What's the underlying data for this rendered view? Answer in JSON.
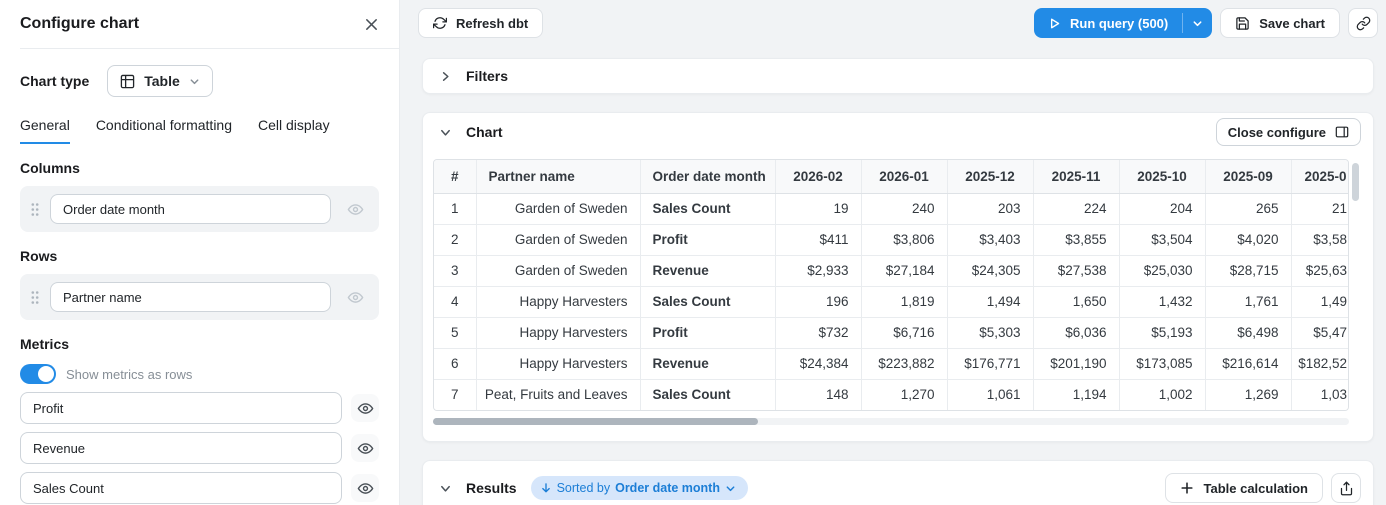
{
  "sidebar": {
    "title": "Configure chart",
    "chart_type": {
      "label": "Chart type",
      "value": "Table"
    },
    "tabs": [
      {
        "label": "General",
        "active": true
      },
      {
        "label": "Conditional formatting",
        "active": false
      },
      {
        "label": "Cell display",
        "active": false
      }
    ],
    "columns_section": {
      "label": "Columns",
      "fields": [
        {
          "value": "Order date month"
        }
      ]
    },
    "rows_section": {
      "label": "Rows",
      "fields": [
        {
          "value": "Partner name"
        }
      ]
    },
    "metrics_section": {
      "label": "Metrics",
      "toggle_label": "Show metrics as rows",
      "toggle_on": true,
      "fields": [
        {
          "value": "Profit"
        },
        {
          "value": "Revenue"
        },
        {
          "value": "Sales Count"
        }
      ]
    }
  },
  "toolbar": {
    "refresh_label": "Refresh dbt",
    "run_query_label": "Run query (500)",
    "save_label": "Save chart"
  },
  "panels": {
    "filters": {
      "title": "Filters"
    },
    "chart": {
      "title": "Chart",
      "close_configure_label": "Close configure"
    },
    "results": {
      "title": "Results",
      "sorted_prefix": "Sorted by",
      "sorted_field": "Order date month",
      "table_calculation_label": "Table calculation"
    }
  },
  "chart_data": {
    "type": "table",
    "columns": [
      "#",
      "Partner name",
      "Order date month",
      "2026-02",
      "2026-01",
      "2025-12",
      "2025-11",
      "2025-10",
      "2025-09",
      "2025-0"
    ],
    "rows": [
      [
        "1",
        "Garden of Sweden",
        "Sales Count",
        "19",
        "240",
        "203",
        "224",
        "204",
        "265",
        "21"
      ],
      [
        "2",
        "Garden of Sweden",
        "Profit",
        "$411",
        "$3,806",
        "$3,403",
        "$3,855",
        "$3,504",
        "$4,020",
        "$3,58"
      ],
      [
        "3",
        "Garden of Sweden",
        "Revenue",
        "$2,933",
        "$27,184",
        "$24,305",
        "$27,538",
        "$25,030",
        "$28,715",
        "$25,63"
      ],
      [
        "4",
        "Happy Harvesters",
        "Sales Count",
        "196",
        "1,819",
        "1,494",
        "1,650",
        "1,432",
        "1,761",
        "1,49"
      ],
      [
        "5",
        "Happy Harvesters",
        "Profit",
        "$732",
        "$6,716",
        "$5,303",
        "$6,036",
        "$5,193",
        "$6,498",
        "$5,47"
      ],
      [
        "6",
        "Happy Harvesters",
        "Revenue",
        "$24,384",
        "$223,882",
        "$176,771",
        "$201,190",
        "$173,085",
        "$216,614",
        "$182,52"
      ],
      [
        "7",
        "Peat, Fruits and Leaves",
        "Sales Count",
        "148",
        "1,270",
        "1,061",
        "1,194",
        "1,002",
        "1,269",
        "1,03"
      ]
    ]
  },
  "icons": {
    "close": "✕",
    "table": "⊞",
    "chevron-down": "⌄",
    "chevron-right": "›",
    "drag-handle": "⠿",
    "eye": "👁",
    "refresh": "⟳",
    "play": "▷",
    "save": "💾",
    "link": "🔗",
    "panel-right": "▤",
    "arrow-down": "↓",
    "plus": "+",
    "share": "⬆"
  },
  "colors": {
    "accent_blue": "#228be6",
    "toggle_on": "#228be6",
    "tab_underline": "#228be6",
    "sort_badge_bg": "#d6e6fb",
    "sort_badge_text": "#1c7ed6",
    "page_bg": "#f1f3f5",
    "card_bg": "#ffffff",
    "table_header_bg": "#f8f9fa"
  }
}
